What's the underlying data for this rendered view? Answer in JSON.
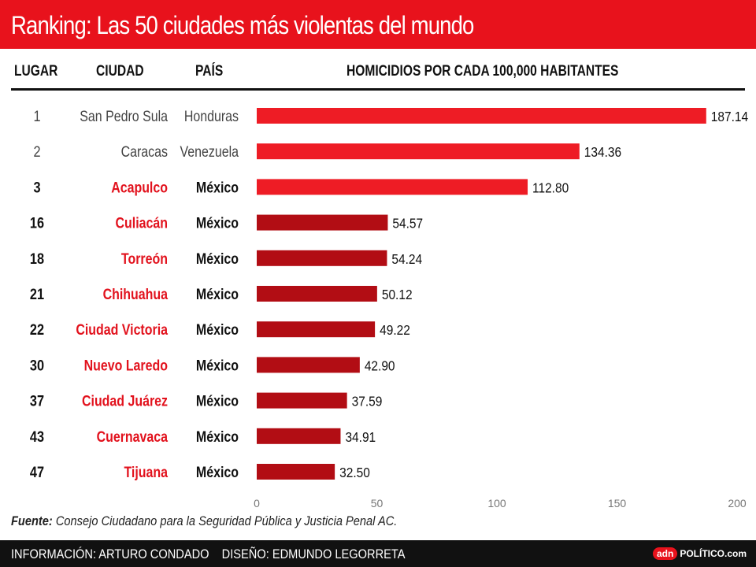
{
  "header": {
    "title": "Ranking: Las 50 ciudades más violentas del mundo",
    "col_rank": "LUGAR",
    "col_city": "CIUDAD",
    "col_country": "PAÍS",
    "col_value": "HOMICIDIOS POR CADA 100,000 HABITANTES"
  },
  "colors": {
    "title_bg": "#e8121c",
    "bar_top": "#ee1c25",
    "bar_mexico": "#b20d14",
    "city_mexico": "#e2121d",
    "text_gray": "#444444",
    "footer_bg": "#111111"
  },
  "chart_data": {
    "type": "bar",
    "orientation": "horizontal",
    "title": "Ranking: Las 50 ciudades más violentas del mundo",
    "ylabel": "HOMICIDIOS POR CADA 100,000 HABITANTES",
    "xlim": [
      0,
      200
    ],
    "x_ticks": [
      "0",
      "50",
      "100",
      "150",
      "200"
    ],
    "rows": [
      {
        "rank": "1",
        "city": "San Pedro Sula",
        "country": "Honduras",
        "value": 187.14,
        "label": "187.14",
        "group": "top"
      },
      {
        "rank": "2",
        "city": "Caracas",
        "country": "Venezuela",
        "value": 134.36,
        "label": "134.36",
        "group": "top"
      },
      {
        "rank": "3",
        "city": "Acapulco",
        "country": "México",
        "value": 112.8,
        "label": "112.80",
        "group": "top"
      },
      {
        "rank": "16",
        "city": "Culiacán",
        "country": "México",
        "value": 54.57,
        "label": "54.57",
        "group": "mexico"
      },
      {
        "rank": "18",
        "city": "Torreón",
        "country": "México",
        "value": 54.24,
        "label": "54.24",
        "group": "mexico"
      },
      {
        "rank": "21",
        "city": "Chihuahua",
        "country": "México",
        "value": 50.12,
        "label": "50.12",
        "group": "mexico"
      },
      {
        "rank": "22",
        "city": "Ciudad Victoria",
        "country": "México",
        "value": 49.22,
        "label": "49.22",
        "group": "mexico"
      },
      {
        "rank": "30",
        "city": "Nuevo Laredo",
        "country": "México",
        "value": 42.9,
        "label": "42.90",
        "group": "mexico"
      },
      {
        "rank": "37",
        "city": "Ciudad Juárez",
        "country": "México",
        "value": 37.59,
        "label": "37.59",
        "group": "mexico"
      },
      {
        "rank": "43",
        "city": "Cuernavaca",
        "country": "México",
        "value": 34.91,
        "label": "34.91",
        "group": "mexico"
      },
      {
        "rank": "47",
        "city": "Tijuana",
        "country": "México",
        "value": 32.5,
        "label": "32.50",
        "group": "mexico"
      }
    ]
  },
  "source": {
    "label": "Fuente:",
    "text": "Consejo Ciudadano para la Seguridad Pública y Justicia Penal AC."
  },
  "footer": {
    "info": "INFORMACIÓN: ARTURO CONDADO",
    "design": "DISEÑO: EDMUNDO LEGORRETA",
    "logo_badge": "adn",
    "logo_text": "POLÍTICO.com"
  }
}
